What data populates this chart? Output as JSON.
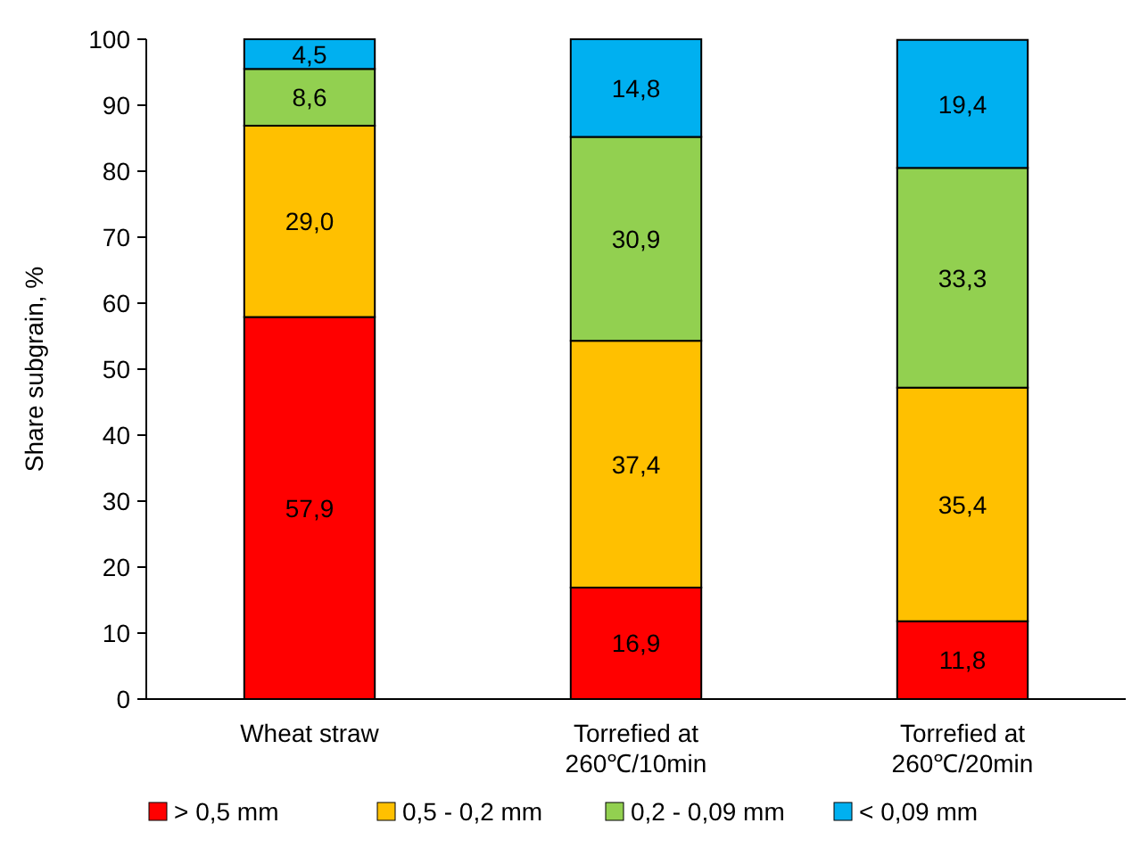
{
  "chart_data": {
    "type": "bar",
    "stacked": true,
    "ylabel": "Share subgrain, %",
    "categories": [
      "Wheat straw",
      "Torrefied at 260℃/10min",
      "Torrefied at 260℃/20min"
    ],
    "ylim": [
      0,
      100
    ],
    "yticks": [
      0,
      10,
      20,
      30,
      40,
      50,
      60,
      70,
      80,
      90,
      100
    ],
    "grid": false,
    "legend": "bottom",
    "series": [
      {
        "name": "> 0,5 mm",
        "color": "#ff0000",
        "values": [
          57.9,
          16.9,
          11.8
        ],
        "value_labels": [
          "57,9",
          "16,9",
          "11,8"
        ]
      },
      {
        "name": "0,5 - 0,2 mm",
        "color": "#ffc000",
        "values": [
          29.0,
          37.4,
          35.4
        ],
        "value_labels": [
          "29,0",
          "37,4",
          "35,4"
        ]
      },
      {
        "name": "0,2 - 0,09 mm",
        "color": "#92d050",
        "values": [
          8.6,
          30.9,
          33.3
        ],
        "value_labels": [
          "8,6",
          "30,9",
          "33,3"
        ]
      },
      {
        "name": "< 0,09 mm",
        "color": "#00b0f0",
        "values": [
          4.5,
          14.8,
          19.4
        ],
        "value_labels": [
          "4,5",
          "14,8",
          "19,4"
        ]
      }
    ]
  }
}
